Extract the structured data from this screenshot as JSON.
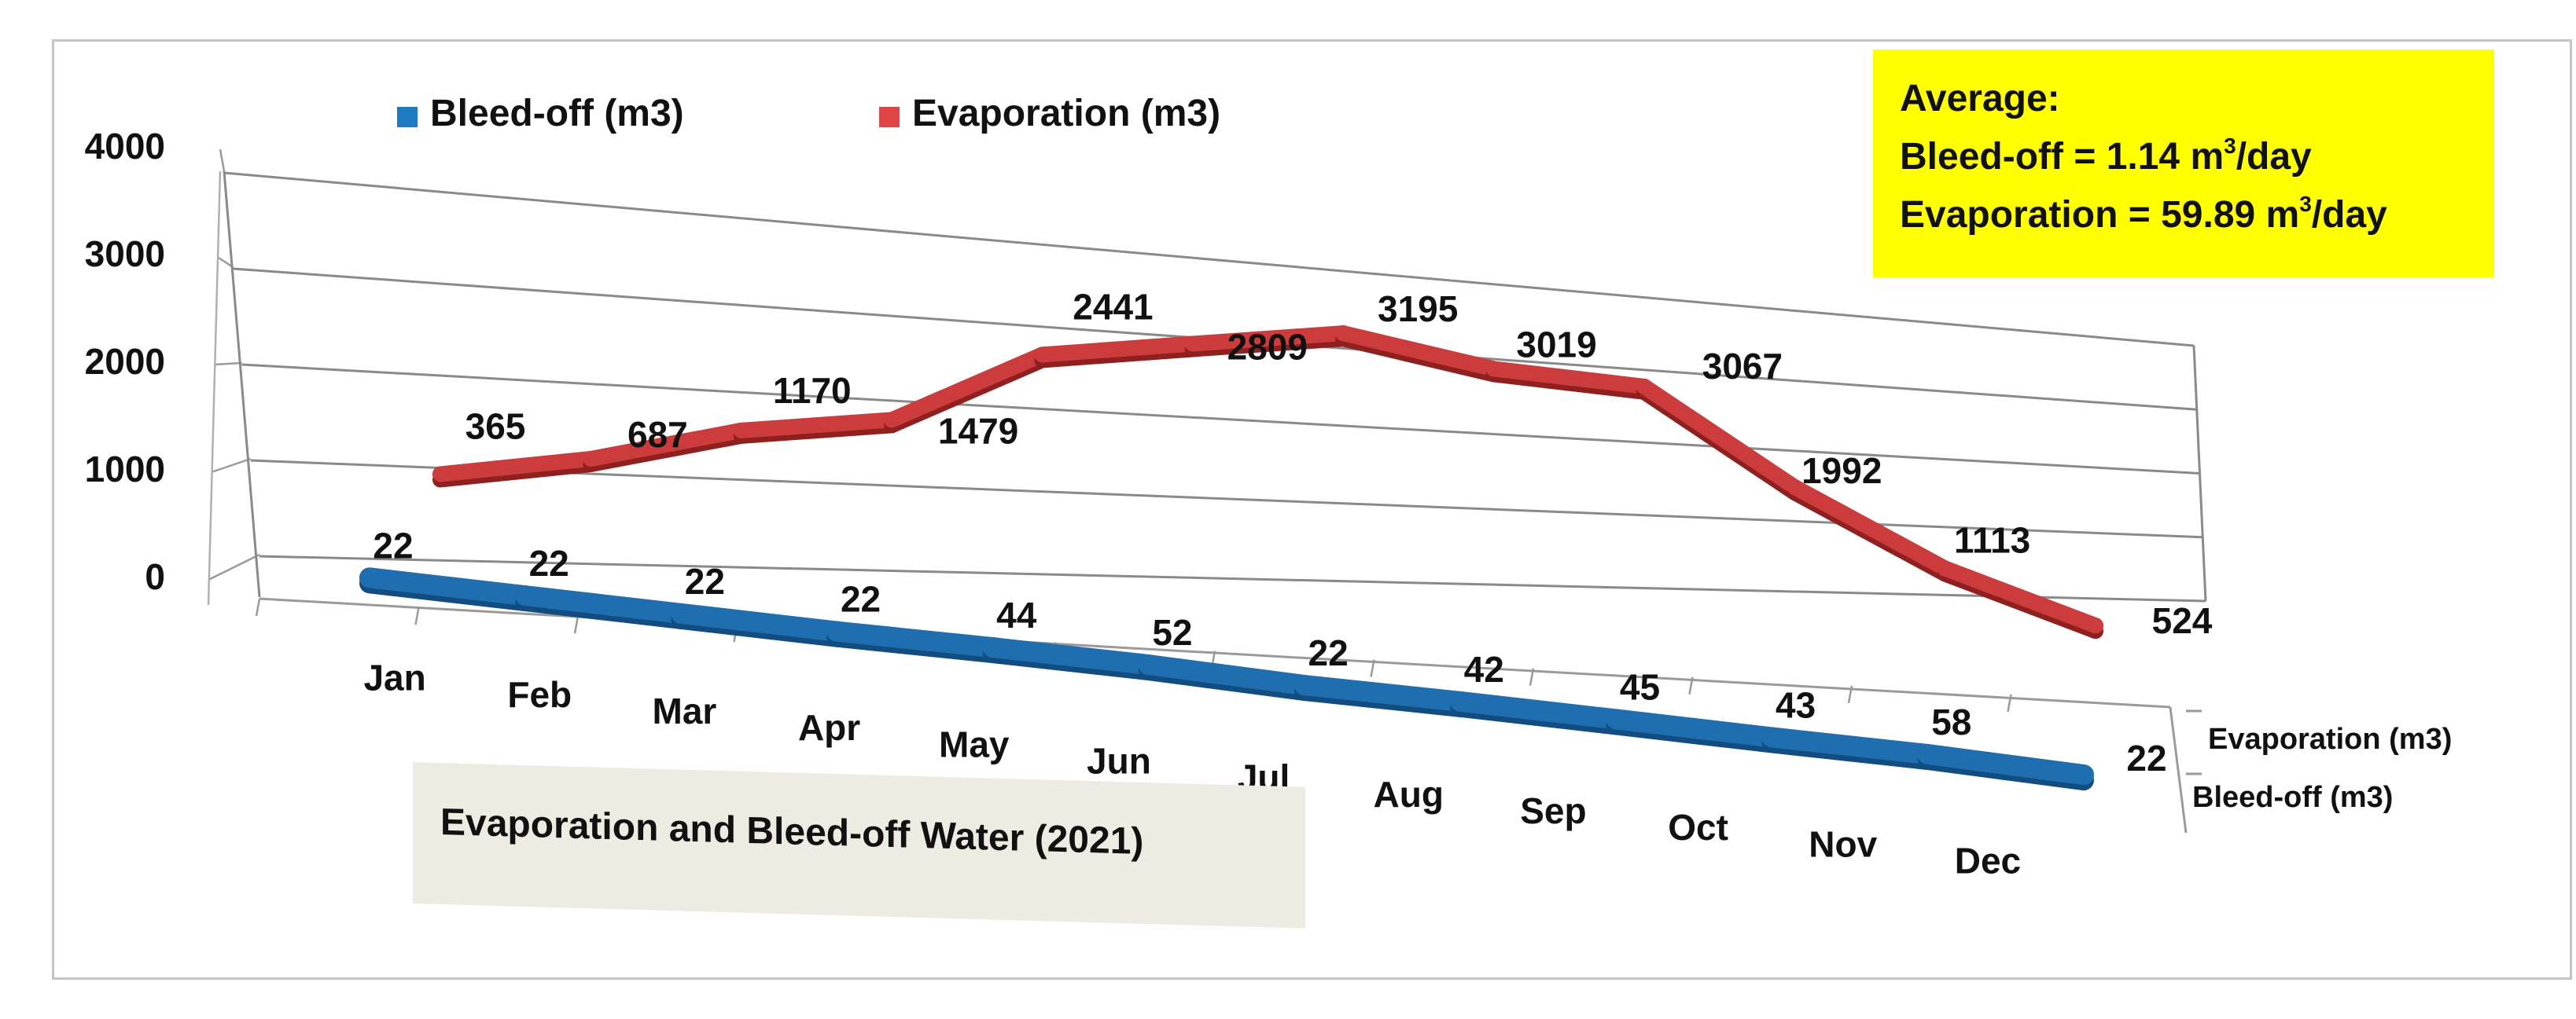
{
  "chart_data": {
    "type": "line",
    "style": "3d",
    "title": "Evaporation and Bleed-off Water (2021)",
    "categories": [
      "Jan",
      "Feb",
      "Mar",
      "Apr",
      "May",
      "Jun",
      "Jul",
      "Aug",
      "Sep",
      "Oct",
      "Nov",
      "Dec"
    ],
    "series": [
      {
        "name": "Bleed-off (m3)",
        "color": "#1f6fb0",
        "values": [
          22,
          22,
          22,
          22,
          44,
          52,
          22,
          42,
          45,
          43,
          58,
          22
        ]
      },
      {
        "name": "Evaporation (m3)",
        "color": "#cc3c3c",
        "values": [
          365,
          687,
          1170,
          1479,
          2441,
          2809,
          3195,
          3019,
          3067,
          1992,
          1113,
          524
        ]
      }
    ],
    "y_ticks": [
      "0",
      "1000",
      "2000",
      "3000",
      "4000"
    ],
    "ylim": [
      0,
      4000
    ],
    "depth_axis_labels": [
      "Evaporation (m3)",
      "Bleed-off (m3)"
    ],
    "legend": [
      {
        "label": "Bleed-off (m3)",
        "color": "#1f7bc0"
      },
      {
        "label": "Evaporation (m3)",
        "color": "#e04545"
      }
    ],
    "legend_position": "top-left",
    "grid": true
  },
  "annotation": {
    "heading": "Average:",
    "bleed_prefix": "Bleed-off = 1.14 m",
    "evap_prefix": "Evaporation = 59.89 m",
    "superscript": "3",
    "unit_suffix": "/day"
  }
}
